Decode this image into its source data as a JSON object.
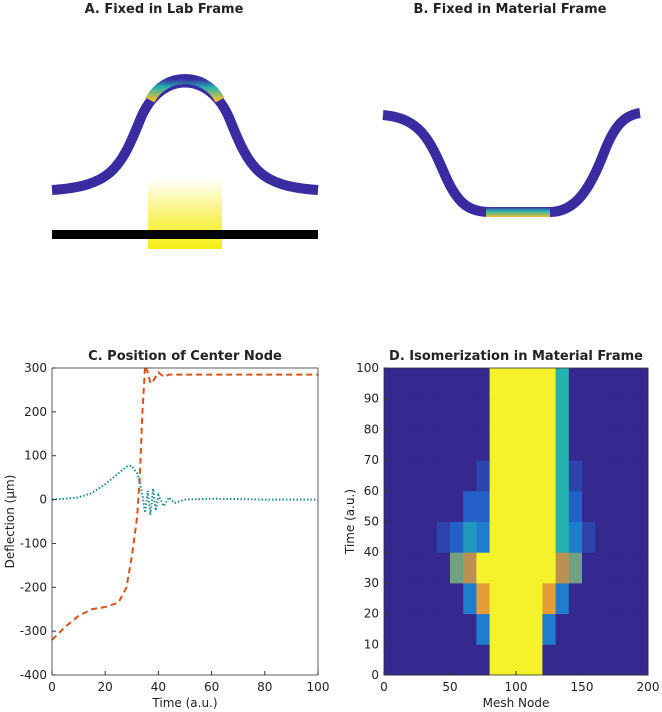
{
  "diagrams": [
    {
      "title": "A. Fixed in Lab Frame"
    },
    {
      "title": "B. Fixed in Material Frame"
    }
  ],
  "chart_data": [
    {
      "type": "line",
      "title": "C. Position of Center Node",
      "xlabel": "Time (a.u.)",
      "ylabel": "Deflection (μm)",
      "x": [
        0,
        5,
        10,
        15,
        20,
        25,
        28,
        30,
        32,
        33,
        34,
        35,
        36,
        37,
        38,
        39,
        40,
        42,
        44,
        46,
        50,
        60,
        80,
        100
      ],
      "series": [
        {
          "color": "#d95319",
          "style": "dashed",
          "values": [
            -320,
            -290,
            -265,
            -250,
            -245,
            -235,
            -200,
            -130,
            -40,
            50,
            200,
            305,
            290,
            265,
            270,
            280,
            290,
            280,
            285,
            285,
            285,
            285,
            285,
            285
          ]
        },
        {
          "color": "#1f8a96",
          "style": "dotted",
          "values": [
            0,
            2,
            5,
            15,
            35,
            60,
            75,
            77,
            60,
            40,
            10,
            -30,
            20,
            -35,
            25,
            -25,
            10,
            -15,
            5,
            -8,
            0,
            2,
            0,
            0
          ]
        }
      ],
      "xlim": [
        0,
        100
      ],
      "xticks": [
        0,
        20,
        40,
        60,
        80,
        100
      ],
      "ylim": [
        -400,
        300
      ],
      "yticks": [
        -400,
        -300,
        -200,
        -100,
        0,
        100,
        200,
        300
      ]
    },
    {
      "type": "heatmap",
      "title": "D. Isomerization in Material Frame",
      "xlabel": "Mesh Node",
      "ylabel": "Time (a.u.)",
      "xbins": [
        0,
        10,
        20,
        30,
        40,
        50,
        60,
        70,
        80,
        90,
        100,
        110,
        120,
        130,
        140,
        150,
        160,
        170,
        180,
        190,
        200
      ],
      "ybins": [
        0,
        10,
        20,
        30,
        40,
        50,
        60,
        70,
        80,
        90,
        100
      ],
      "colors": [
        "#35288f",
        "#1f6fd6",
        "#25b3b0",
        "#e0883a",
        "#f5f12a"
      ],
      "z": [
        [
          0,
          0,
          0,
          0,
          0,
          0,
          0,
          0,
          1,
          1,
          1,
          1,
          0,
          0,
          0,
          0,
          0,
          0,
          0,
          0
        ],
        [
          0,
          0,
          0,
          0,
          0,
          0,
          0,
          0.3,
          1,
          1,
          1,
          1,
          0.3,
          0,
          0,
          0,
          0,
          0,
          0,
          0
        ],
        [
          0,
          0,
          0,
          0,
          0,
          0,
          0.3,
          0.8,
          1,
          1,
          1,
          1,
          0.8,
          0.3,
          0,
          0,
          0,
          0,
          0,
          0
        ],
        [
          0,
          0,
          0,
          0,
          0,
          0.6,
          0.7,
          1,
          1,
          1,
          1,
          1,
          1,
          0.7,
          0.6,
          0,
          0,
          0,
          0,
          0
        ],
        [
          0,
          0,
          0,
          0,
          0.1,
          0.2,
          0.4,
          0.3,
          1,
          1,
          1,
          1,
          1,
          0.5,
          0.3,
          0.1,
          0,
          0,
          0,
          0
        ],
        [
          0,
          0,
          0,
          0,
          0,
          0,
          0.2,
          0.2,
          1,
          1,
          1,
          1,
          1,
          0.5,
          0.2,
          0,
          0,
          0,
          0,
          0
        ],
        [
          0,
          0,
          0,
          0,
          0,
          0,
          0,
          0.1,
          1,
          1,
          1,
          1,
          1,
          0.5,
          0.1,
          0,
          0,
          0,
          0,
          0
        ],
        [
          0,
          0,
          0,
          0,
          0,
          0,
          0,
          0,
          1,
          1,
          1,
          1,
          1,
          0.5,
          0,
          0,
          0,
          0,
          0,
          0
        ],
        [
          0,
          0,
          0,
          0,
          0,
          0,
          0,
          0,
          1,
          1,
          1,
          1,
          1,
          0.5,
          0,
          0,
          0,
          0,
          0,
          0
        ],
        [
          0,
          0,
          0,
          0,
          0,
          0,
          0,
          0,
          1,
          1,
          1,
          1,
          1,
          0.5,
          0,
          0,
          0,
          0,
          0,
          0
        ]
      ],
      "xlim": [
        0,
        200
      ],
      "xticks": [
        0,
        50,
        100,
        150,
        200
      ],
      "ylim": [
        0,
        100
      ],
      "yticks": [
        0,
        10,
        20,
        30,
        40,
        50,
        60,
        70,
        80,
        90,
        100
      ]
    }
  ]
}
